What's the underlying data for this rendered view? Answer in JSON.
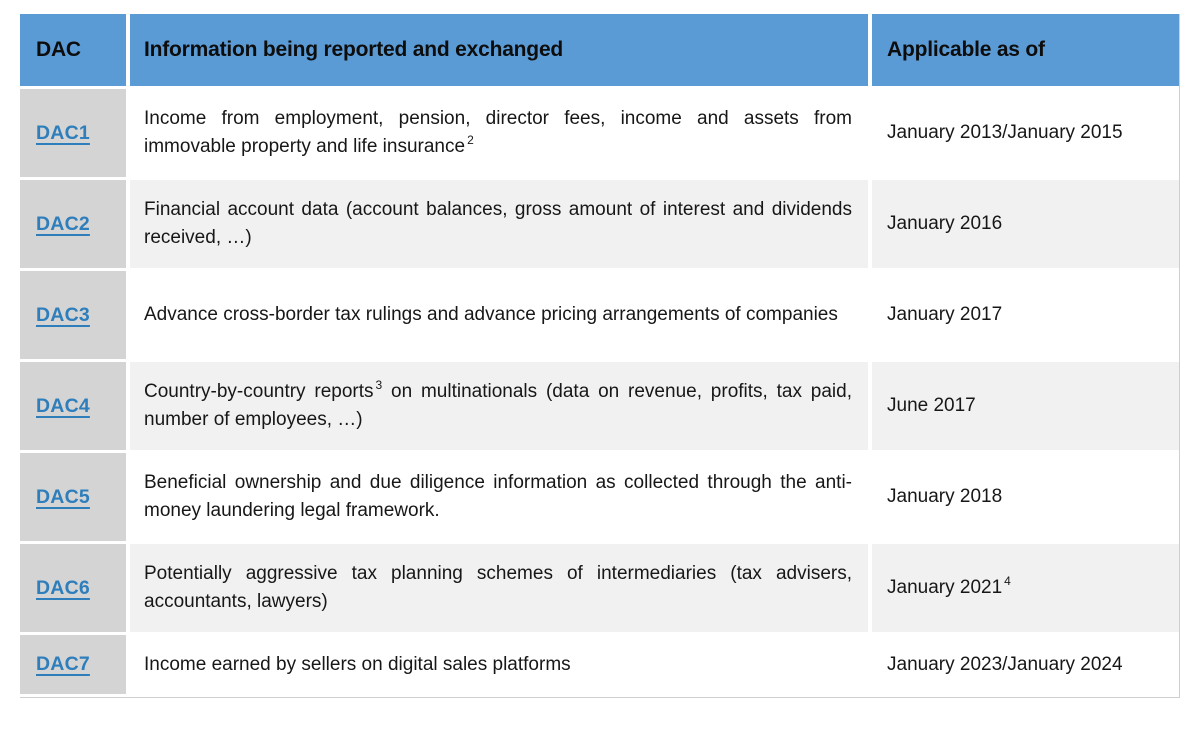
{
  "colors": {
    "header_bg": "#5b9bd5",
    "header_text": "#0d0d0d",
    "body_text": "#171717",
    "link": "#2e7ebc",
    "dac_cell_bg": "#d4d4d4",
    "row_shaded_bg": "#f1f1f1",
    "row_bg": "#ffffff",
    "outer_border": "#cfcfcf"
  },
  "table": {
    "columns": [
      {
        "label": "DAC"
      },
      {
        "label": "Information being reported and exchanged"
      },
      {
        "label": "Applicable as of"
      }
    ],
    "rows": [
      {
        "dac": "DAC1",
        "info": [
          {
            "t": "Income from employment, pension, director fees, income and assets from immovable property and life insurance"
          },
          {
            "t": "2",
            "sup": true
          }
        ],
        "date": [
          {
            "t": "January 2013/January 2015"
          }
        ]
      },
      {
        "dac": "DAC2",
        "info": [
          {
            "t": "Financial account data (account balances, gross amount of interest and dividends received, …)"
          }
        ],
        "date": [
          {
            "t": "January 2016"
          }
        ]
      },
      {
        "dac": "DAC3",
        "info": [
          {
            "t": "Advance cross-border tax rulings and advance pricing arrangements of companies"
          }
        ],
        "date": [
          {
            "t": "January 2017"
          }
        ]
      },
      {
        "dac": "DAC4",
        "info": [
          {
            "t": "Country-by-country reports"
          },
          {
            "t": "3",
            "sup": true
          },
          {
            "t": " on multinationals (data on revenue, profits, tax paid, number of employees, …)"
          }
        ],
        "date": [
          {
            "t": "June 2017"
          }
        ]
      },
      {
        "dac": "DAC5",
        "info": [
          {
            "t": "Beneficial ownership and due diligence information as collected through the anti-money laundering legal framework."
          }
        ],
        "date": [
          {
            "t": "January 2018"
          }
        ]
      },
      {
        "dac": "DAC6",
        "info": [
          {
            "t": "Potentially aggressive tax planning schemes of intermediaries (tax advisers, accountants, lawyers)"
          }
        ],
        "date": [
          {
            "t": "January 2021"
          },
          {
            "t": "4",
            "sup": true
          }
        ]
      },
      {
        "dac": "DAC7",
        "info": [
          {
            "t": "Income earned by sellers on digital sales platforms"
          }
        ],
        "date": [
          {
            "t": "January 2023/January 2024"
          }
        ]
      }
    ]
  }
}
